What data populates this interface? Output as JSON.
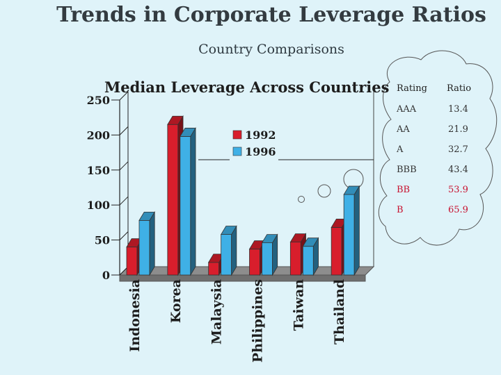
{
  "slide": {
    "title": "Trends in Corporate Leverage Ratios",
    "subtitle": "Country Comparisons"
  },
  "chart_data": {
    "type": "bar",
    "title": "Median Leverage Across Countries",
    "categories": [
      "Indonesia",
      "Korea",
      "Malaysia",
      "Philippines",
      "Taiwan",
      "Thailand"
    ],
    "series": [
      {
        "name": "1992",
        "values": [
          40,
          215,
          18,
          37,
          47,
          68
        ],
        "color": "#d81e2c"
      },
      {
        "name": "1996",
        "values": [
          78,
          198,
          58,
          46,
          41,
          115
        ],
        "color": "#3fb0e6"
      }
    ],
    "yticks": [
      "0",
      "50",
      "100",
      "150",
      "200",
      "250"
    ],
    "ylim": [
      0,
      250
    ],
    "grid": false,
    "legend_position": "top-right",
    "style": "3d-bars"
  },
  "rating_table": {
    "headers": [
      "Rating",
      "Ratio"
    ],
    "rows": [
      {
        "rating": "AAA",
        "ratio": "13.4",
        "color": "#333333"
      },
      {
        "rating": "AA",
        "ratio": "21.9",
        "color": "#333333"
      },
      {
        "rating": "A",
        "ratio": "32.7",
        "color": "#333333"
      },
      {
        "rating": "BBB",
        "ratio": "43.4",
        "color": "#333333"
      },
      {
        "rating": "BB",
        "ratio": "53.9",
        "color": "#c8102e"
      },
      {
        "rating": "B",
        "ratio": "65.9",
        "color": "#c8102e"
      }
    ]
  }
}
